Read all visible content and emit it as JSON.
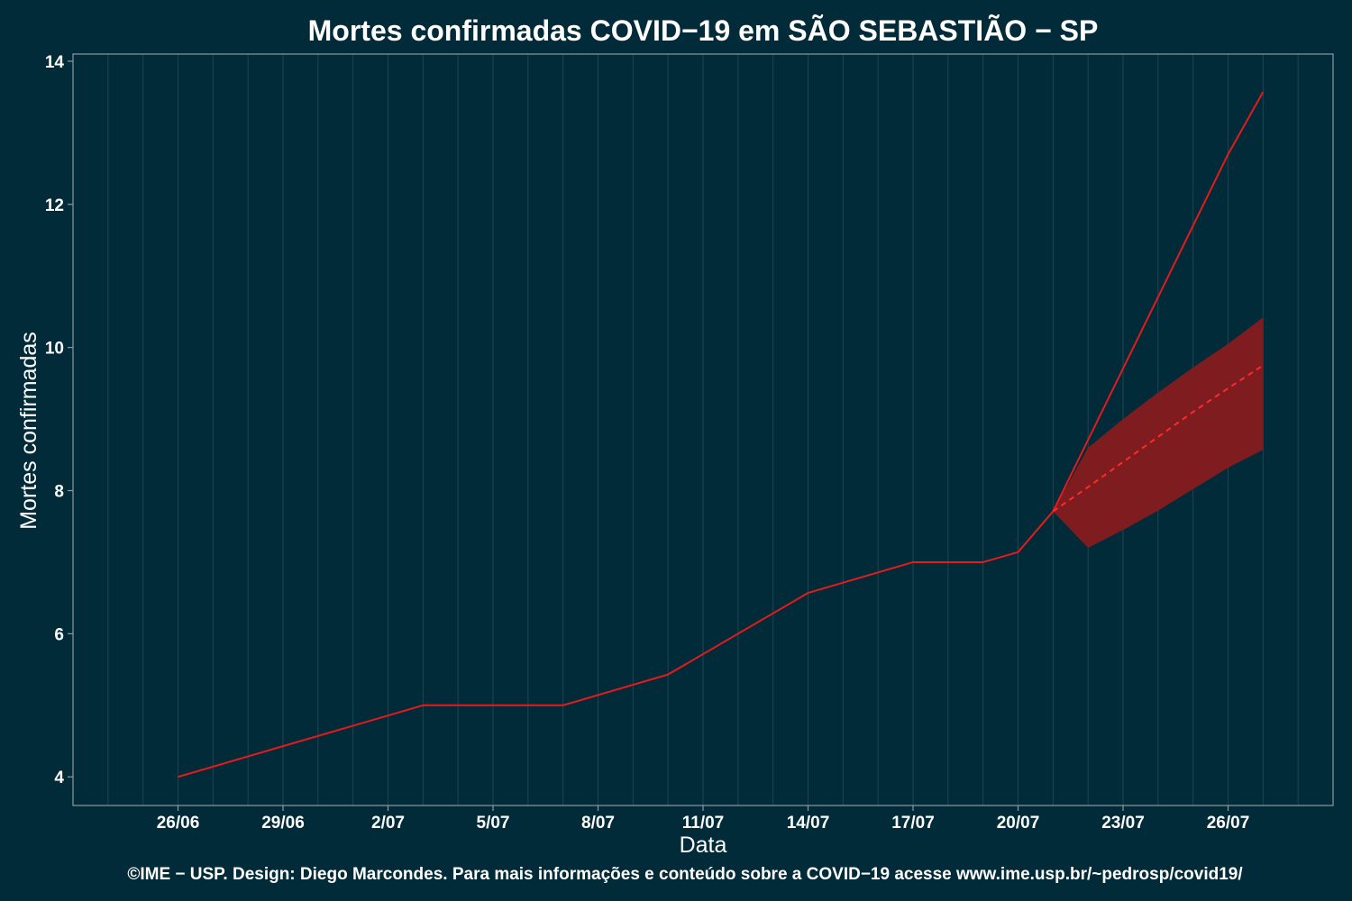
{
  "colors": {
    "background": "#022b3a",
    "grid": "#1f4451",
    "panel_border": "#8c9ba2",
    "observed_line": "#e51a1a",
    "forecast_band": "#7f1c1f",
    "forecast_line": "#ff2a2a"
  },
  "chart_data": {
    "type": "line",
    "title": "Mortes confirmadas COVID−19 em SÃO SEBASTIÃO − SP",
    "xlabel": "Data",
    "ylabel": "Mortes confirmadas",
    "caption": "©IME − USP. Design: Diego Marcondes. Para mais informações e conteúdo sobre a COVID−19 acesse www.ime.usp.br/~pedrosp/covid19/",
    "x_start": "2020-06-26",
    "xlim": [
      "2020-06-23",
      "2020-07-29"
    ],
    "ylim": [
      3.6,
      14.1
    ],
    "x_ticks": [
      {
        "date": "2020-06-26",
        "label": "26/06"
      },
      {
        "date": "2020-06-29",
        "label": "29/06"
      },
      {
        "date": "2020-07-02",
        "label": "2/07"
      },
      {
        "date": "2020-07-05",
        "label": "5/07"
      },
      {
        "date": "2020-07-08",
        "label": "8/07"
      },
      {
        "date": "2020-07-11",
        "label": "11/07"
      },
      {
        "date": "2020-07-14",
        "label": "14/07"
      },
      {
        "date": "2020-07-17",
        "label": "17/07"
      },
      {
        "date": "2020-07-20",
        "label": "20/07"
      },
      {
        "date": "2020-07-23",
        "label": "23/07"
      },
      {
        "date": "2020-07-26",
        "label": "26/07"
      }
    ],
    "y_ticks": [
      4,
      6,
      8,
      10,
      12,
      14
    ],
    "grid": true,
    "series": [
      {
        "role": "observed",
        "points": [
          [
            "2020-06-26",
            4.0
          ],
          [
            "2020-07-03",
            5.0
          ],
          [
            "2020-07-07",
            5.0
          ],
          [
            "2020-07-10",
            5.43
          ],
          [
            "2020-07-14",
            6.57
          ],
          [
            "2020-07-17",
            7.0
          ],
          [
            "2020-07-19",
            7.0
          ],
          [
            "2020-07-20",
            7.14
          ],
          [
            "2020-07-21",
            7.71
          ],
          [
            "2020-07-26",
            12.7
          ],
          [
            "2020-07-27",
            13.57
          ]
        ]
      },
      {
        "role": "forecast",
        "points": [
          [
            "2020-07-21",
            7.71
          ],
          [
            "2020-07-22",
            8.05
          ],
          [
            "2020-07-23",
            8.4
          ],
          [
            "2020-07-24",
            8.75
          ],
          [
            "2020-07-25",
            9.1
          ],
          [
            "2020-07-26",
            9.43
          ],
          [
            "2020-07-27",
            9.75
          ]
        ]
      }
    ],
    "forecast_interval": {
      "points": [
        [
          "2020-07-21",
          7.71,
          7.71
        ],
        [
          "2020-07-22",
          7.2,
          8.6
        ],
        [
          "2020-07-23",
          7.45,
          9.0
        ],
        [
          "2020-07-24",
          7.72,
          9.37
        ],
        [
          "2020-07-25",
          8.02,
          9.72
        ],
        [
          "2020-07-26",
          8.32,
          10.05
        ],
        [
          "2020-07-27",
          8.57,
          10.42
        ]
      ]
    }
  }
}
